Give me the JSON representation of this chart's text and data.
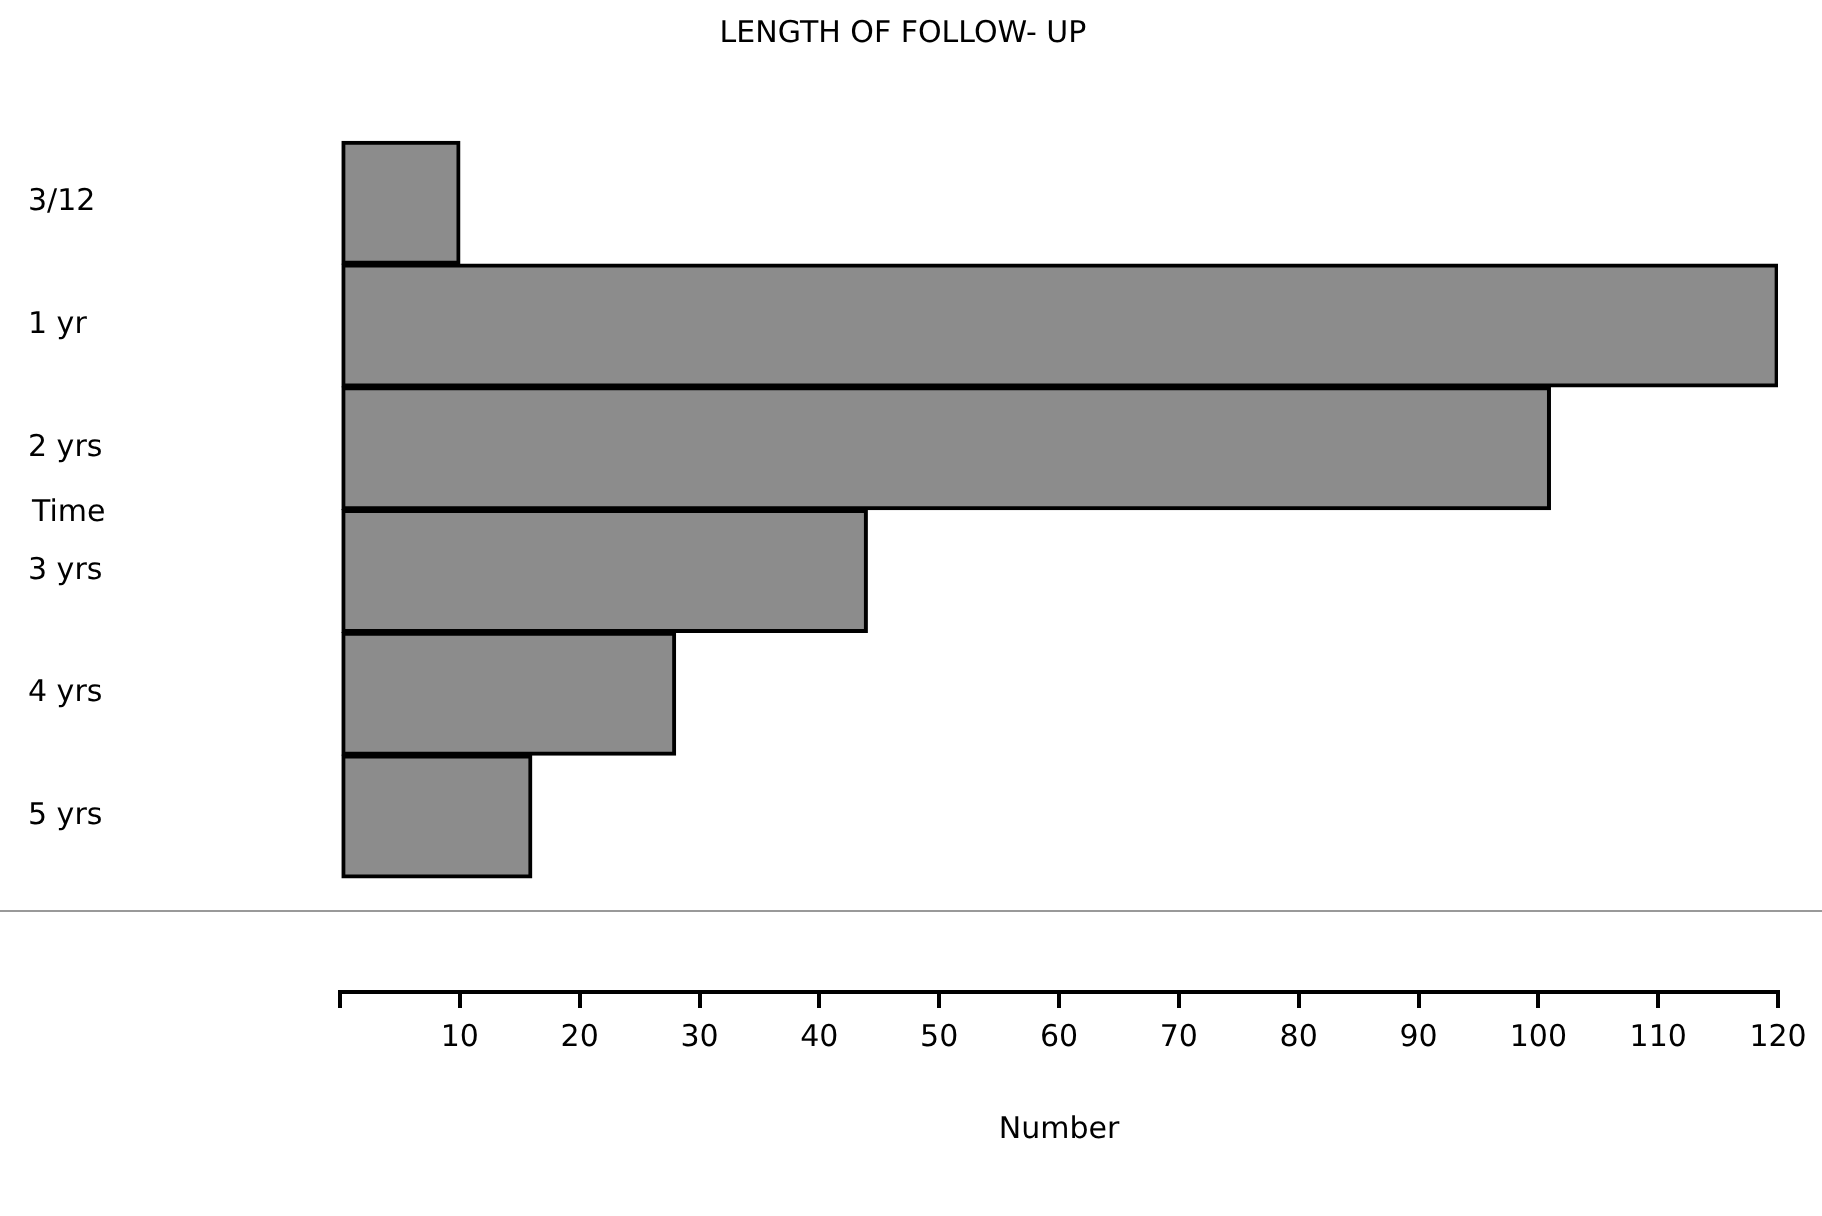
{
  "chart_data": {
    "type": "bar",
    "orientation": "horizontal",
    "title": "LENGTH OF FOLLOW- UP",
    "xlabel": "Number",
    "ylabel": "Time",
    "categories": [
      "3/12",
      "1 yr",
      "2 yrs",
      "3 yrs",
      "4 yrs",
      "5 yrs"
    ],
    "values": [
      10,
      120,
      101,
      44,
      28,
      16
    ],
    "color": "#8c8c8c",
    "xlim": [
      0,
      120
    ],
    "xticks": [
      10,
      20,
      30,
      40,
      50,
      60,
      70,
      80,
      90,
      100,
      110,
      120
    ],
    "grid": false,
    "legend": false
  }
}
